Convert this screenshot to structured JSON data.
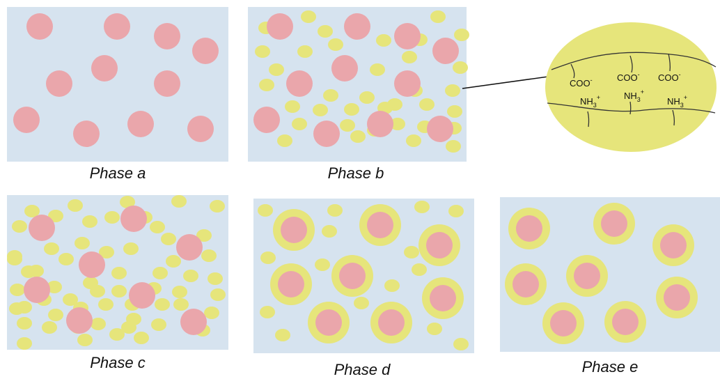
{
  "panels": [
    {
      "id": "a",
      "caption": "Phase a"
    },
    {
      "id": "b",
      "caption": "Phase b"
    },
    {
      "id": "c",
      "caption": "Phase c"
    },
    {
      "id": "d",
      "caption": "Phase d"
    },
    {
      "id": "e",
      "caption": "Phase e"
    }
  ],
  "zoom": {
    "groups": [
      {
        "carboxyl": "COO",
        "carboxyl_charge": "-",
        "amine": "NH",
        "amine_sub": "3",
        "amine_charge": "+"
      },
      {
        "carboxyl": "COO",
        "carboxyl_charge": "-",
        "amine": "NH",
        "amine_sub": "3",
        "amine_charge": "+"
      },
      {
        "carboxyl": "COO",
        "carboxyl_charge": "-",
        "amine": "NH",
        "amine_sub": "3",
        "amine_charge": "+"
      }
    ]
  },
  "colors": {
    "panel_background": "#d6e3ef",
    "particle": "#eaa6ab",
    "polymer": "#e6e57b"
  }
}
